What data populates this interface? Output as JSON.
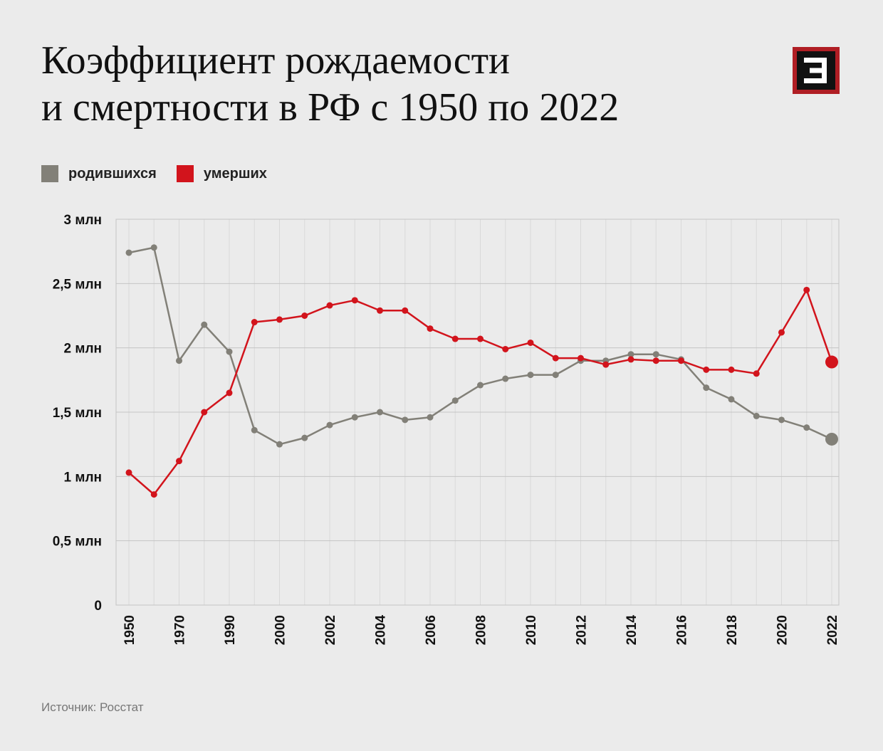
{
  "header": {
    "title_line1": "Коэффициент рождаемости",
    "title_line2": "и смертности в РФ с 1950 по 2022"
  },
  "source": "Источник: Росстат",
  "colors": {
    "births": "#828078",
    "deaths": "#d2141c",
    "background": "#ebebeb",
    "logo_frame": "#b01e24"
  },
  "logo_icon": "e-logo-icon",
  "chart_data": {
    "type": "line",
    "categories": [
      "1950",
      "1960",
      "1970",
      "1980",
      "1990",
      "1995",
      "2000",
      "2001",
      "2002",
      "2003",
      "2004",
      "2005",
      "2006",
      "2007",
      "2008",
      "2009",
      "2010",
      "2011",
      "2012",
      "2013",
      "2014",
      "2015",
      "2016",
      "2017",
      "2018",
      "2019",
      "2020",
      "2021",
      "2022"
    ],
    "tick_labels": [
      "1950",
      "1970",
      "1990",
      "2000",
      "2002",
      "2004",
      "2006",
      "2008",
      "2010",
      "2012",
      "2014",
      "2016",
      "2018",
      "2020",
      "2022"
    ],
    "tick_indices": [
      0,
      2,
      4,
      6,
      8,
      10,
      12,
      14,
      16,
      18,
      20,
      22,
      24,
      26,
      28
    ],
    "series": [
      {
        "name": "родившихся",
        "color": "#828078",
        "values": [
          2.74,
          2.78,
          1.9,
          2.18,
          1.97,
          1.36,
          1.25,
          1.3,
          1.4,
          1.46,
          1.5,
          1.44,
          1.46,
          1.59,
          1.71,
          1.76,
          1.79,
          1.79,
          1.9,
          1.9,
          1.95,
          1.95,
          1.91,
          1.69,
          1.6,
          1.47,
          1.44,
          1.38,
          1.29
        ]
      },
      {
        "name": "умерших",
        "color": "#d2141c",
        "values": [
          1.03,
          0.86,
          1.12,
          1.5,
          1.65,
          2.2,
          2.22,
          2.25,
          2.33,
          2.37,
          2.29,
          2.29,
          2.15,
          2.07,
          2.07,
          1.99,
          2.04,
          1.92,
          1.92,
          1.87,
          1.91,
          1.9,
          1.9,
          1.83,
          1.83,
          1.8,
          2.12,
          2.45,
          1.89
        ]
      }
    ],
    "y_ticks": [
      0,
      0.5,
      1,
      1.5,
      2,
      2.5,
      3
    ],
    "y_tick_labels": [
      "0",
      "0,5 млн",
      "1 млн",
      "1,5 млн",
      "2 млн",
      "2,5 млн",
      "3 млн"
    ],
    "ylim": [
      0,
      3
    ],
    "grid": true,
    "legend_position": "top-left"
  }
}
